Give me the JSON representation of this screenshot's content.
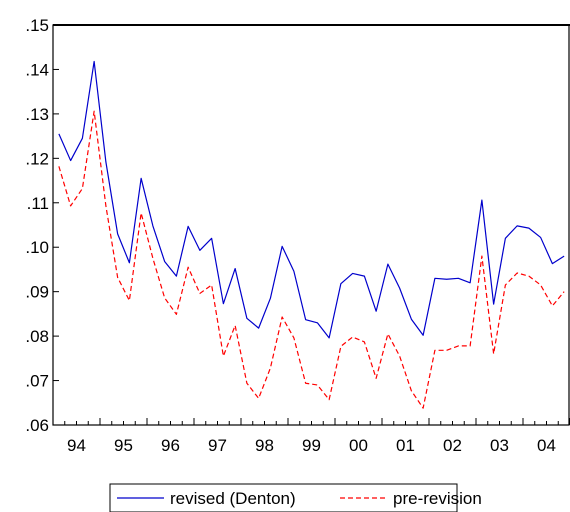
{
  "chart_data": {
    "type": "line",
    "title": "",
    "xlabel": "",
    "ylabel": "",
    "frequency": "quarterly",
    "x": [
      "1994Q1",
      "1994Q2",
      "1994Q3",
      "1994Q4",
      "1995Q1",
      "1995Q2",
      "1995Q3",
      "1995Q4",
      "1996Q1",
      "1996Q2",
      "1996Q3",
      "1996Q4",
      "1997Q1",
      "1997Q2",
      "1997Q3",
      "1997Q4",
      "1998Q1",
      "1998Q2",
      "1998Q3",
      "1998Q4",
      "1999Q1",
      "1999Q2",
      "1999Q3",
      "1999Q4",
      "2000Q1",
      "2000Q2",
      "2000Q3",
      "2000Q4",
      "2001Q1",
      "2001Q2",
      "2001Q3",
      "2001Q4",
      "2002Q1",
      "2002Q2",
      "2002Q3",
      "2002Q4",
      "2003Q1",
      "2003Q2",
      "2003Q3",
      "2003Q4",
      "2004Q1",
      "2004Q2",
      "2004Q3",
      "2004Q4"
    ],
    "x_ticks": [
      "94",
      "95",
      "96",
      "97",
      "98",
      "99",
      "00",
      "01",
      "02",
      "03",
      "04"
    ],
    "y_ticks": [
      ".06",
      ".07",
      ".08",
      ".09",
      ".10",
      ".11",
      ".12",
      ".13",
      ".14",
      ".15"
    ],
    "ylim": [
      0.06,
      0.15
    ],
    "grid": false,
    "legend_position": "bottom",
    "series": [
      {
        "name": "revised (Denton)",
        "color": "#0000cc",
        "style": "solid",
        "values": [
          0.1255,
          0.1195,
          0.1245,
          0.1418,
          0.1192,
          0.103,
          0.0965,
          0.1155,
          0.1048,
          0.0968,
          0.0935,
          0.1047,
          0.0993,
          0.102,
          0.0873,
          0.0952,
          0.084,
          0.0818,
          0.0885,
          0.1002,
          0.0946,
          0.0837,
          0.083,
          0.0796,
          0.0918,
          0.0941,
          0.0935,
          0.0856,
          0.0962,
          0.0908,
          0.0838,
          0.0802,
          0.093,
          0.0928,
          0.093,
          0.092,
          0.1106,
          0.0872,
          0.102,
          0.1048,
          0.1043,
          0.1022,
          0.0963,
          0.098
        ]
      },
      {
        "name": "pre-revision",
        "color": "#ff0000",
        "style": "dashed",
        "values": [
          0.1182,
          0.1093,
          0.1132,
          0.1306,
          0.1093,
          0.0932,
          0.088,
          0.1077,
          0.0975,
          0.0886,
          0.0849,
          0.0955,
          0.0896,
          0.0915,
          0.0755,
          0.0824,
          0.0694,
          0.066,
          0.0728,
          0.0843,
          0.0796,
          0.0694,
          0.069,
          0.0657,
          0.0777,
          0.0798,
          0.0787,
          0.0705,
          0.0805,
          0.0755,
          0.0677,
          0.0638,
          0.0768,
          0.0768,
          0.0778,
          0.0778,
          0.098,
          0.076,
          0.0915,
          0.0942,
          0.0935,
          0.0915,
          0.0868,
          0.09
        ]
      }
    ]
  }
}
